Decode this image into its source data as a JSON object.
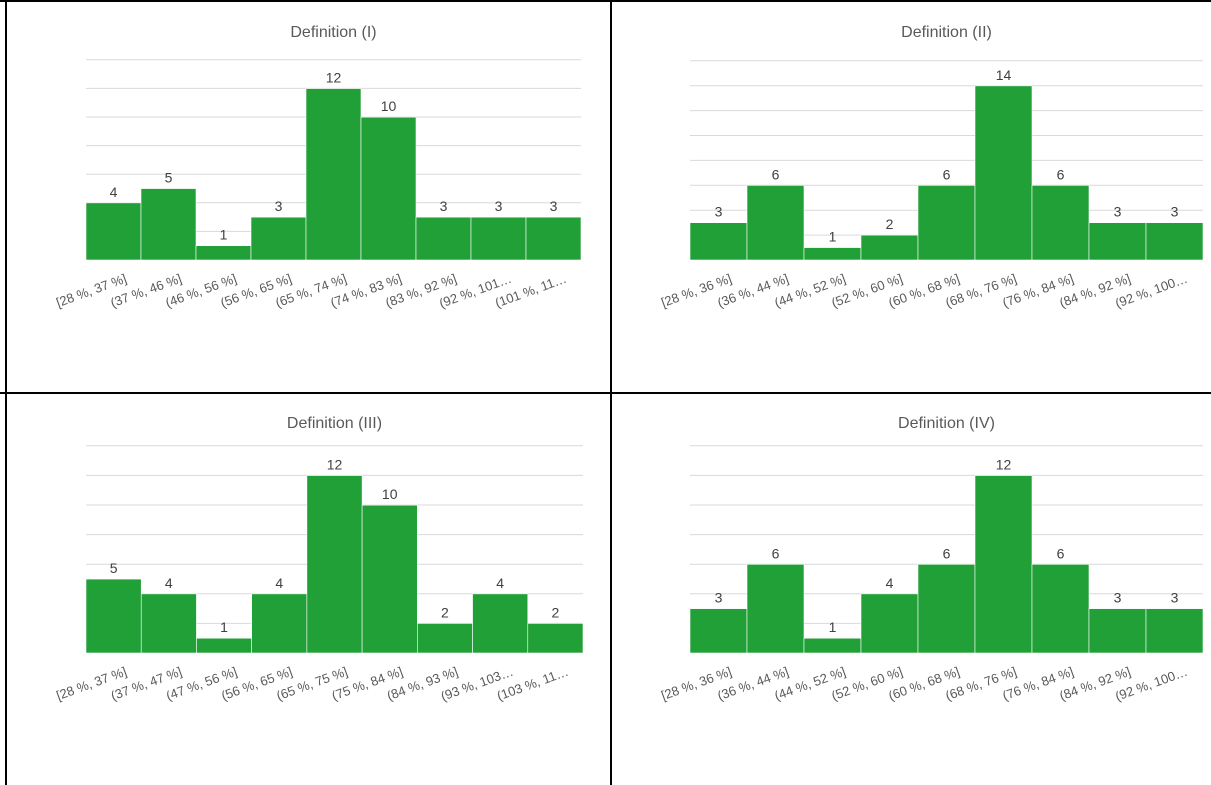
{
  "colors": {
    "bar": "#21a037",
    "grid": "#d9d9d9",
    "text": "#595959",
    "border": "#000000"
  },
  "chart_data": [
    {
      "type": "bar",
      "title": "Definition (I)",
      "categories": [
        "[28 %, 37 %]",
        "(37 %, 46 %]",
        "(46 %, 56 %]",
        "(56 %, 65 %]",
        "(65 %, 74 %]",
        "(74 %, 83 %]",
        "(83 %, 92 %]",
        "(92 %, 101…",
        "(101 %, 11…"
      ],
      "values": [
        4,
        5,
        1,
        3,
        12,
        10,
        3,
        3,
        3
      ],
      "ylim": [
        0,
        14
      ],
      "grid": true,
      "legend": "none"
    },
    {
      "type": "bar",
      "title": "Definition (II)",
      "categories": [
        "[28 %, 36 %]",
        "(36 %, 44 %]",
        "(44 %, 52 %]",
        "(52 %, 60 %]",
        "(60 %, 68 %]",
        "(68 %, 76 %]",
        "(76 %, 84 %]",
        "(84 %, 92 %]",
        "(92 %, 100…"
      ],
      "values": [
        3,
        6,
        1,
        2,
        6,
        14,
        6,
        3,
        3
      ],
      "ylim": [
        0,
        16
      ],
      "grid": true,
      "legend": "none"
    },
    {
      "type": "bar",
      "title": "Definition (III)",
      "categories": [
        "[28 %, 37 %]",
        "(37 %, 47 %]",
        "(47 %, 56 %]",
        "(56 %, 65 %]",
        "(65 %, 75 %]",
        "(75 %, 84 %]",
        "(84 %, 93 %]",
        "(93 %, 103…",
        "(103 %, 11…"
      ],
      "values": [
        5,
        4,
        1,
        4,
        12,
        10,
        2,
        4,
        2
      ],
      "ylim": [
        0,
        14
      ],
      "grid": true,
      "legend": "none"
    },
    {
      "type": "bar",
      "title": "Definition (IV)",
      "categories": [
        "[28 %, 36 %]",
        "(36 %, 44 %]",
        "(44 %, 52 %]",
        "(52 %, 60 %]",
        "(60 %, 68 %]",
        "(68 %, 76 %]",
        "(76 %, 84 %]",
        "(84 %, 92 %]",
        "(92 %, 100…"
      ],
      "values": [
        3,
        6,
        1,
        4,
        6,
        12,
        6,
        3,
        3
      ],
      "ylim": [
        0,
        14
      ],
      "grid": true,
      "legend": "none"
    }
  ]
}
